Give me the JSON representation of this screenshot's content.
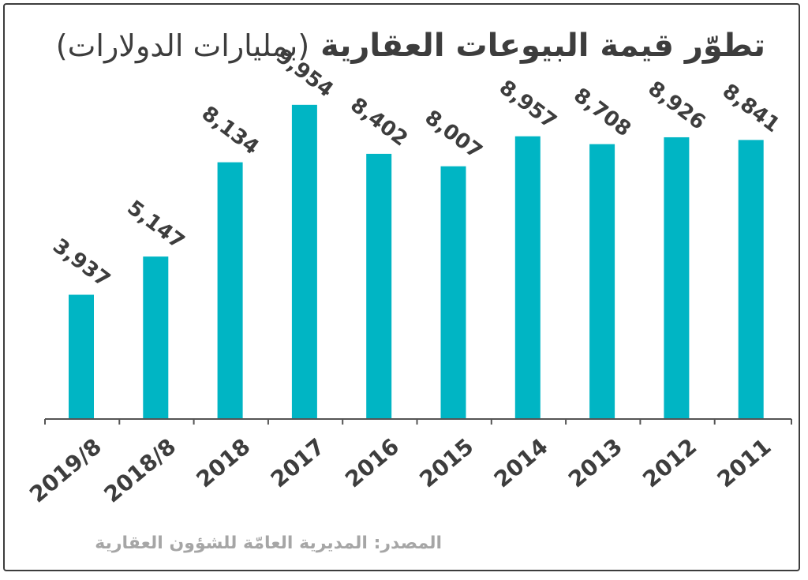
{
  "chart_data": {
    "type": "bar",
    "title": "تطوّر قيمة البيوعات العقارية",
    "unit_label": "(بمليارات الدولارات)",
    "categories": [
      "2019/8",
      "2018/8",
      "2018",
      "2017",
      "2016",
      "2015",
      "2014",
      "2013",
      "2012",
      "2011"
    ],
    "values": [
      3937,
      5147,
      8134,
      9954,
      8402,
      8007,
      8957,
      8708,
      8926,
      8841
    ],
    "value_labels": [
      "3,937",
      "5,147",
      "8,134",
      "9,954",
      "8,402",
      "8,007",
      "8,957",
      "8,708",
      "8,926",
      "8,841"
    ],
    "ylim": [
      0,
      10000
    ],
    "grid": false,
    "source": "المصدر: المديرية العامّة للشؤون العقارية"
  },
  "colors": {
    "bar": "#00b5c4",
    "text": "#3d3d3d",
    "axis": "#555555",
    "source_text": "#a6a6a6",
    "frame": "#3d3d3d"
  }
}
